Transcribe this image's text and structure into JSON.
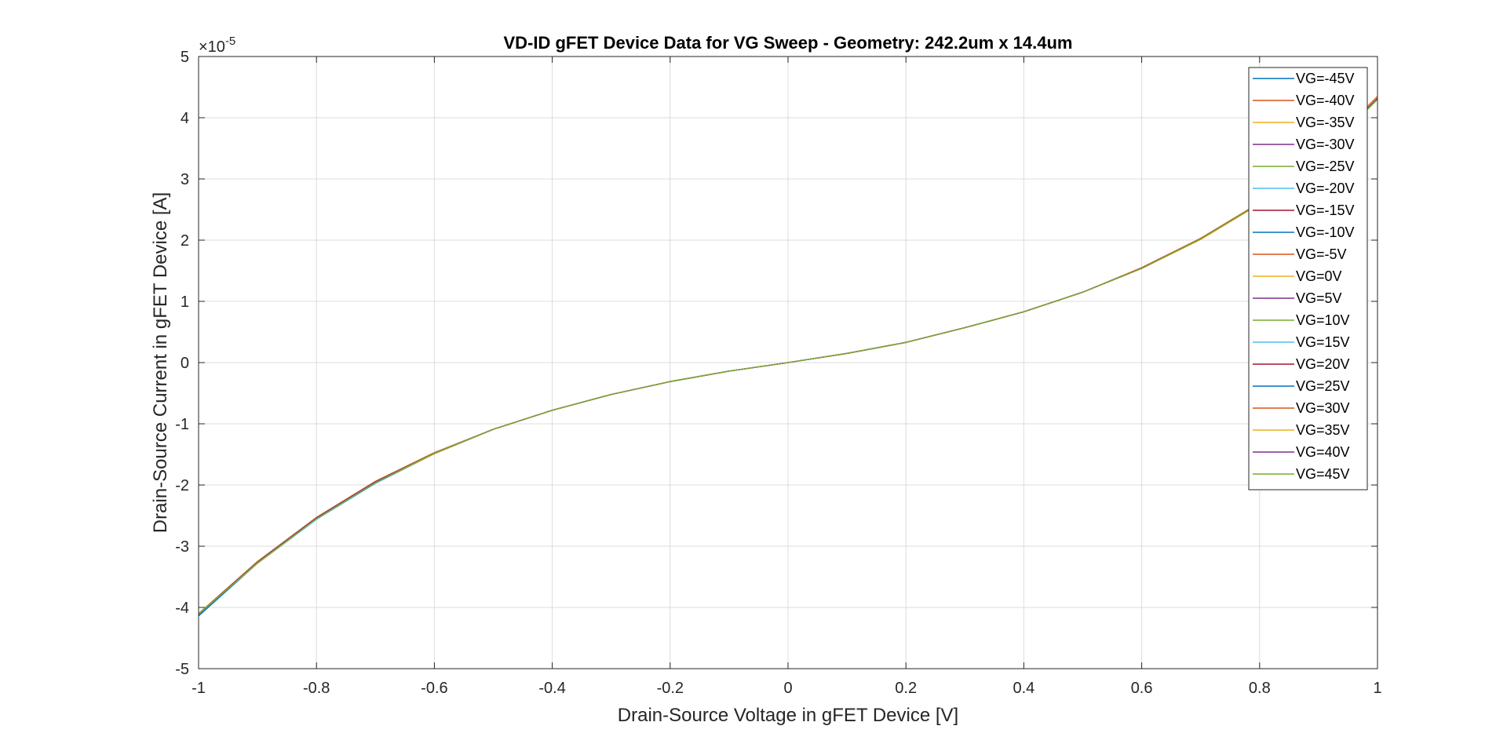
{
  "chart_data": {
    "type": "line",
    "title": "VD-ID gFET Device Data for VG Sweep - Geometry: 242.2um x 14.4um",
    "xlabel": "Drain-Source Voltage in gFET Device [V]",
    "ylabel": "Drain-Source Current in gFET Device [A]",
    "xlim": [
      -1,
      1
    ],
    "ylim": [
      -5,
      5
    ],
    "y_exponent_base": "×10",
    "y_exponent": "-5",
    "x_ticks": [
      "-1",
      "-0.8",
      "-0.6",
      "-0.4",
      "-0.2",
      "0",
      "0.2",
      "0.4",
      "0.6",
      "0.8",
      "1"
    ],
    "y_ticks": [
      "-5",
      "-4",
      "-3",
      "-2",
      "-1",
      "0",
      "1",
      "2",
      "3",
      "4",
      "5"
    ],
    "grid": true,
    "legend_position": "top-right",
    "x": [
      -1,
      -0.9,
      -0.8,
      -0.7,
      -0.6,
      -0.5,
      -0.4,
      -0.3,
      -0.2,
      -0.1,
      0,
      0.1,
      0.2,
      0.3,
      0.4,
      0.5,
      0.6,
      0.7,
      0.8,
      0.9,
      1
    ],
    "series": [
      {
        "name": "VG=-45V",
        "color": "#0072BD",
        "values": [
          -4.12,
          -3.26,
          -2.54,
          -1.95,
          -1.48,
          -1.09,
          -0.78,
          -0.52,
          -0.31,
          -0.14,
          0,
          0.15,
          0.33,
          0.57,
          0.83,
          1.15,
          1.54,
          2.02,
          2.6,
          3.36,
          4.32
        ]
      },
      {
        "name": "VG=-40V",
        "color": "#D95319",
        "values": [
          -4.1,
          -3.25,
          -2.53,
          -1.94,
          -1.47,
          -1.09,
          -0.78,
          -0.52,
          -0.31,
          -0.14,
          0,
          0.15,
          0.33,
          0.57,
          0.83,
          1.15,
          1.55,
          2.03,
          2.61,
          3.38,
          4.35
        ]
      },
      {
        "name": "VG=-35V",
        "color": "#EDB120",
        "values": [
          -4.1,
          -3.28,
          -2.55,
          -1.96,
          -1.49,
          -1.09,
          -0.78,
          -0.52,
          -0.31,
          -0.14,
          0,
          0.15,
          0.33,
          0.57,
          0.83,
          1.15,
          1.54,
          2.01,
          2.59,
          3.36,
          4.34
        ]
      },
      {
        "name": "VG=-30V",
        "color": "#7E2F8E",
        "values": [
          -4.11,
          -3.26,
          -2.54,
          -1.95,
          -1.48,
          -1.09,
          -0.78,
          -0.52,
          -0.31,
          -0.14,
          0,
          0.15,
          0.33,
          0.57,
          0.83,
          1.15,
          1.54,
          2.02,
          2.6,
          3.36,
          4.32
        ]
      },
      {
        "name": "VG=-25V",
        "color": "#77AC30",
        "values": [
          -4.11,
          -3.27,
          -2.55,
          -1.96,
          -1.48,
          -1.09,
          -0.78,
          -0.52,
          -0.31,
          -0.14,
          0,
          0.15,
          0.33,
          0.57,
          0.83,
          1.15,
          1.54,
          2.02,
          2.6,
          3.35,
          4.3
        ]
      },
      {
        "name": "VG=-20V",
        "color": "#4DBEEE",
        "values": [
          -4.13,
          -3.28,
          -2.56,
          -1.96,
          -1.48,
          -1.09,
          -0.78,
          -0.52,
          -0.31,
          -0.14,
          0,
          0.15,
          0.33,
          0.57,
          0.83,
          1.15,
          1.54,
          2.02,
          2.59,
          3.35,
          4.3
        ]
      },
      {
        "name": "VG=-15V",
        "color": "#A2142F",
        "values": [
          -4.11,
          -3.26,
          -2.54,
          -1.95,
          -1.48,
          -1.09,
          -0.78,
          -0.52,
          -0.31,
          -0.14,
          0,
          0.15,
          0.33,
          0.57,
          0.83,
          1.15,
          1.54,
          2.02,
          2.6,
          3.36,
          4.33
        ]
      },
      {
        "name": "VG=-10V",
        "color": "#0072BD",
        "values": [
          -4.14,
          -3.28,
          -2.56,
          -1.97,
          -1.49,
          -1.09,
          -0.78,
          -0.52,
          -0.31,
          -0.14,
          0,
          0.15,
          0.33,
          0.57,
          0.83,
          1.15,
          1.54,
          2.02,
          2.59,
          3.35,
          4.31
        ]
      },
      {
        "name": "VG=-5V",
        "color": "#D95319",
        "values": [
          -4.11,
          -3.26,
          -2.54,
          -1.95,
          -1.48,
          -1.09,
          -0.78,
          -0.52,
          -0.31,
          -0.14,
          0,
          0.15,
          0.33,
          0.57,
          0.83,
          1.15,
          1.55,
          2.03,
          2.6,
          3.37,
          4.34
        ]
      },
      {
        "name": "VG=0V",
        "color": "#EDB120",
        "values": [
          -4.11,
          -3.27,
          -2.55,
          -1.96,
          -1.48,
          -1.09,
          -0.78,
          -0.52,
          -0.31,
          -0.14,
          0,
          0.15,
          0.33,
          0.57,
          0.83,
          1.15,
          1.54,
          2.02,
          2.6,
          3.36,
          4.33
        ]
      },
      {
        "name": "VG=5V",
        "color": "#7E2F8E",
        "values": [
          -4.11,
          -3.26,
          -2.54,
          -1.95,
          -1.48,
          -1.09,
          -0.78,
          -0.52,
          -0.31,
          -0.14,
          0,
          0.15,
          0.33,
          0.57,
          0.83,
          1.15,
          1.54,
          2.02,
          2.6,
          3.36,
          4.32
        ]
      },
      {
        "name": "VG=10V",
        "color": "#77AC30",
        "values": [
          -4.12,
          -3.27,
          -2.55,
          -1.95,
          -1.48,
          -1.09,
          -0.78,
          -0.52,
          -0.31,
          -0.14,
          0,
          0.15,
          0.33,
          0.57,
          0.83,
          1.15,
          1.54,
          2.02,
          2.6,
          3.35,
          4.31
        ]
      },
      {
        "name": "VG=15V",
        "color": "#4DBEEE",
        "values": [
          -4.13,
          -3.28,
          -2.56,
          -1.96,
          -1.48,
          -1.09,
          -0.78,
          -0.52,
          -0.31,
          -0.14,
          0,
          0.15,
          0.33,
          0.57,
          0.83,
          1.15,
          1.54,
          2.02,
          2.59,
          3.35,
          4.3
        ]
      },
      {
        "name": "VG=20V",
        "color": "#A2142F",
        "values": [
          -4.11,
          -3.26,
          -2.54,
          -1.95,
          -1.48,
          -1.09,
          -0.78,
          -0.52,
          -0.31,
          -0.14,
          0,
          0.15,
          0.33,
          0.57,
          0.83,
          1.15,
          1.54,
          2.02,
          2.6,
          3.36,
          4.33
        ]
      },
      {
        "name": "VG=25V",
        "color": "#0072BD",
        "values": [
          -4.13,
          -3.27,
          -2.55,
          -1.96,
          -1.49,
          -1.09,
          -0.78,
          -0.52,
          -0.31,
          -0.14,
          0,
          0.15,
          0.33,
          0.57,
          0.83,
          1.15,
          1.54,
          2.02,
          2.6,
          3.35,
          4.31
        ]
      },
      {
        "name": "VG=30V",
        "color": "#D95319",
        "values": [
          -4.1,
          -3.25,
          -2.53,
          -1.94,
          -1.47,
          -1.09,
          -0.78,
          -0.52,
          -0.31,
          -0.14,
          0,
          0.15,
          0.33,
          0.57,
          0.83,
          1.15,
          1.55,
          2.03,
          2.61,
          3.38,
          4.35
        ]
      },
      {
        "name": "VG=35V",
        "color": "#EDB120",
        "values": [
          -4.1,
          -3.28,
          -2.55,
          -1.96,
          -1.49,
          -1.09,
          -0.78,
          -0.52,
          -0.31,
          -0.14,
          0,
          0.15,
          0.33,
          0.57,
          0.83,
          1.15,
          1.54,
          2.01,
          2.59,
          3.36,
          4.34
        ]
      },
      {
        "name": "VG=40V",
        "color": "#7E2F8E",
        "values": [
          -4.11,
          -3.26,
          -2.54,
          -1.95,
          -1.48,
          -1.09,
          -0.78,
          -0.52,
          -0.31,
          -0.14,
          0,
          0.15,
          0.33,
          0.57,
          0.83,
          1.15,
          1.54,
          2.02,
          2.6,
          3.36,
          4.32
        ]
      },
      {
        "name": "VG=45V",
        "color": "#77AC30",
        "values": [
          -4.11,
          -3.27,
          -2.55,
          -1.96,
          -1.48,
          -1.09,
          -0.78,
          -0.52,
          -0.31,
          -0.14,
          0,
          0.15,
          0.33,
          0.57,
          0.83,
          1.15,
          1.54,
          2.02,
          2.6,
          3.35,
          4.3
        ]
      }
    ]
  }
}
